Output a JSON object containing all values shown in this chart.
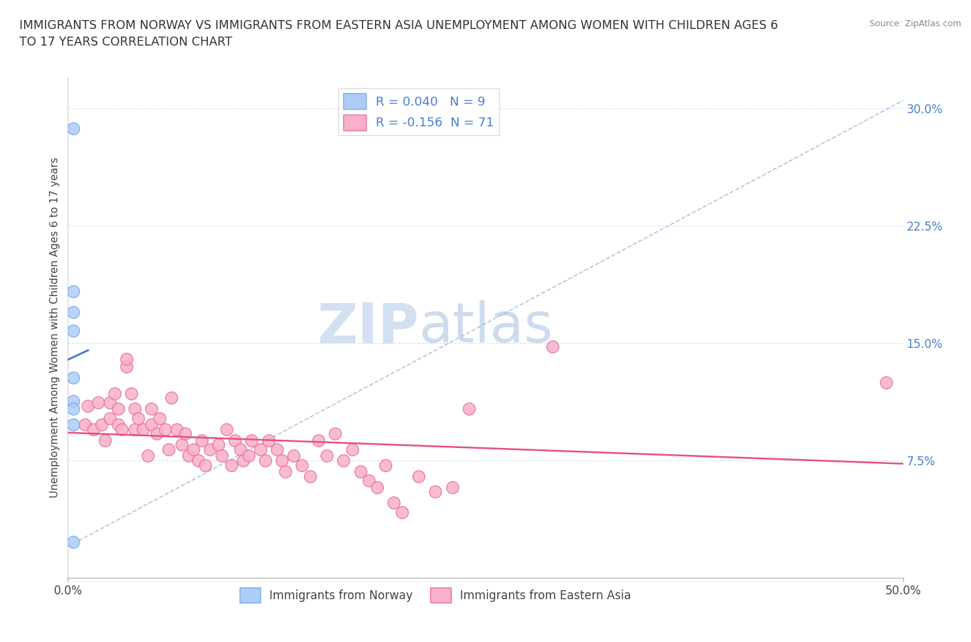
{
  "title": "IMMIGRANTS FROM NORWAY VS IMMIGRANTS FROM EASTERN ASIA UNEMPLOYMENT AMONG WOMEN WITH CHILDREN AGES 6\nTO 17 YEARS CORRELATION CHART",
  "source": "Source: ZipAtlas.com",
  "ylabel": "Unemployment Among Women with Children Ages 6 to 17 years",
  "ylabel_right_ticks": [
    "30.0%",
    "22.5%",
    "15.0%",
    "7.5%"
  ],
  "ylabel_right_vals": [
    0.3,
    0.225,
    0.15,
    0.075
  ],
  "xmin": 0.0,
  "xmax": 0.5,
  "ymin": 0.0,
  "ymax": 0.32,
  "norway_R": 0.04,
  "norway_N": 9,
  "eastern_asia_R": -0.156,
  "eastern_asia_N": 71,
  "norway_color": "#aeccf8",
  "norway_edge": "#7aaae8",
  "eastern_asia_color": "#f8b0cc",
  "eastern_asia_edge": "#e87098",
  "norway_trend_color": "#4878c8",
  "eastern_asia_trend_color": "#e8507a",
  "dashed_line_color": "#98b8d8",
  "norway_points_x": [
    0.003,
    0.003,
    0.003,
    0.003,
    0.003,
    0.003,
    0.003,
    0.003,
    0.003
  ],
  "norway_points_y": [
    0.287,
    0.183,
    0.17,
    0.158,
    0.128,
    0.113,
    0.108,
    0.098,
    0.023
  ],
  "eastern_asia_points_x": [
    0.01,
    0.012,
    0.015,
    0.018,
    0.02,
    0.022,
    0.025,
    0.025,
    0.028,
    0.03,
    0.03,
    0.032,
    0.035,
    0.035,
    0.038,
    0.04,
    0.04,
    0.042,
    0.045,
    0.048,
    0.05,
    0.05,
    0.053,
    0.055,
    0.058,
    0.06,
    0.062,
    0.065,
    0.068,
    0.07,
    0.072,
    0.075,
    0.078,
    0.08,
    0.082,
    0.085,
    0.09,
    0.092,
    0.095,
    0.098,
    0.1,
    0.103,
    0.105,
    0.108,
    0.11,
    0.115,
    0.118,
    0.12,
    0.125,
    0.128,
    0.13,
    0.135,
    0.14,
    0.145,
    0.15,
    0.155,
    0.16,
    0.165,
    0.17,
    0.175,
    0.18,
    0.185,
    0.19,
    0.195,
    0.2,
    0.21,
    0.22,
    0.23,
    0.24,
    0.29,
    0.49
  ],
  "eastern_asia_points_y": [
    0.098,
    0.11,
    0.095,
    0.112,
    0.098,
    0.088,
    0.102,
    0.112,
    0.118,
    0.098,
    0.108,
    0.095,
    0.135,
    0.14,
    0.118,
    0.095,
    0.108,
    0.102,
    0.095,
    0.078,
    0.098,
    0.108,
    0.092,
    0.102,
    0.095,
    0.082,
    0.115,
    0.095,
    0.085,
    0.092,
    0.078,
    0.082,
    0.075,
    0.088,
    0.072,
    0.082,
    0.085,
    0.078,
    0.095,
    0.072,
    0.088,
    0.082,
    0.075,
    0.078,
    0.088,
    0.082,
    0.075,
    0.088,
    0.082,
    0.075,
    0.068,
    0.078,
    0.072,
    0.065,
    0.088,
    0.078,
    0.092,
    0.075,
    0.082,
    0.068,
    0.062,
    0.058,
    0.072,
    0.048,
    0.042,
    0.065,
    0.055,
    0.058,
    0.108,
    0.148,
    0.125
  ],
  "watermark_zip": "ZIP",
  "watermark_atlas": "atlas",
  "background_color": "#ffffff",
  "grid_color": "#d8e4f0"
}
